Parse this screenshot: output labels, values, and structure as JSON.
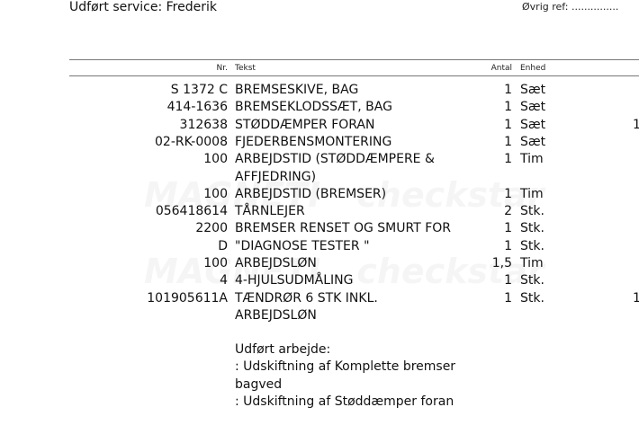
{
  "header": {
    "service_label": "Udført service: Frederik",
    "ref_label": "Øvrig ref: ..............."
  },
  "table": {
    "columns": {
      "nr": "Nr.",
      "tekst": "Tekst",
      "antal": "Antal",
      "enhed": "Enhed"
    },
    "rows": [
      {
        "nr": "S 1372 C",
        "tekst": "BREMSESKIVE, BAG",
        "antal": "1",
        "enhed": "Sæt",
        "extra": ""
      },
      {
        "nr": "414-1636",
        "tekst": "BREMSEKLODSSÆT, BAG",
        "antal": "1",
        "enhed": "Sæt",
        "extra": ""
      },
      {
        "nr": "312638",
        "tekst": "STØDDÆMPER FORAN",
        "antal": "1",
        "enhed": "Sæt",
        "extra": "1"
      },
      {
        "nr": "02-RK-0008",
        "tekst": "FJEDERBENSMONTERING",
        "antal": "1",
        "enhed": "Sæt",
        "extra": ""
      },
      {
        "nr": "100",
        "tekst": "ARBEJDSTID (STØDDÆMPERE &",
        "antal": "1",
        "enhed": "Tim",
        "extra": ""
      },
      {
        "nr": "",
        "tekst": "AFFJEDRING)",
        "antal": "",
        "enhed": "",
        "extra": ""
      },
      {
        "nr": "100",
        "tekst": "ARBEJDSTID (BREMSER)",
        "antal": "1",
        "enhed": "Tim",
        "extra": ""
      },
      {
        "nr": "056418614",
        "tekst": "TÅRNLEJER",
        "antal": "2",
        "enhed": "Stk.",
        "extra": ""
      },
      {
        "nr": "2200",
        "tekst": "BREMSER RENSET OG SMURT FOR",
        "antal": "1",
        "enhed": "Stk.",
        "extra": ""
      },
      {
        "nr": "D",
        "tekst": "\"DIAGNOSE TESTER \"",
        "antal": "1",
        "enhed": "Stk.",
        "extra": ""
      },
      {
        "nr": "100",
        "tekst": "ARBEJDSLØN",
        "antal": "1,5",
        "enhed": "Tim",
        "extra": ""
      },
      {
        "nr": "4",
        "tekst": "4-HJULSUDMÅLING",
        "antal": "1",
        "enhed": "Stk.",
        "extra": ""
      },
      {
        "nr": "101905611A",
        "tekst": "TÆNDRØR 6 STK INKL.",
        "antal": "1",
        "enhed": "Stk.",
        "extra": "1"
      },
      {
        "nr": "",
        "tekst": "ARBEJDSLØN",
        "antal": "",
        "enhed": "",
        "extra": ""
      }
    ]
  },
  "work_done": [
    "Udført arbejde:",
    ": Udskiftning af Komplette bremser",
    "bagved",
    ": Udskiftning af Støddæmper foran"
  ],
  "watermark": {
    "brand1": "MAGNETI MARELLI",
    "brand2": "checkstar"
  }
}
